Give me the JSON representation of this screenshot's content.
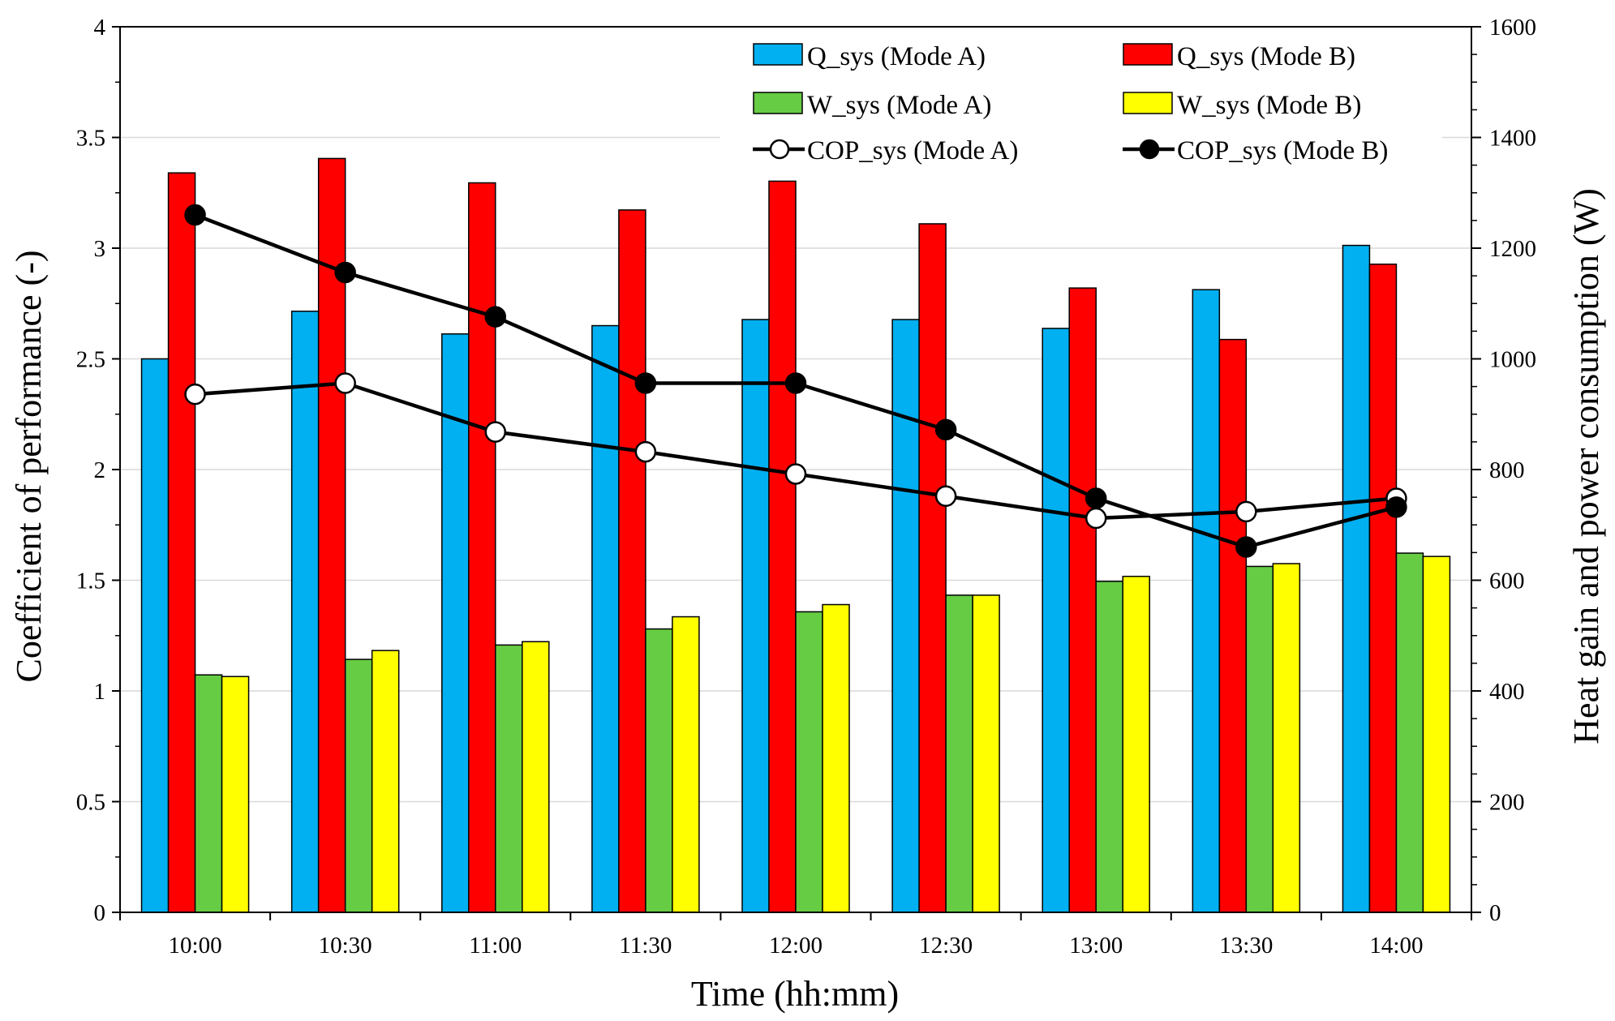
{
  "chart_data": {
    "type": "bar",
    "title": "",
    "xlabel": "Time (hh:mm)",
    "ylabel_left": "Coefficient of performance (-)",
    "ylabel_right": "Heat gain and power consumption (W)",
    "categories": [
      "10:00",
      "10:30",
      "11:00",
      "11:30",
      "12:00",
      "12:30",
      "13:00",
      "13:30",
      "14:00"
    ],
    "ylim_left": [
      0,
      4
    ],
    "ylim_right": [
      0,
      1600
    ],
    "yticks_left": [
      "0",
      "0.5",
      "1",
      "1.5",
      "2",
      "2.5",
      "3",
      "3.5",
      "4"
    ],
    "yticks_right": [
      "0",
      "200",
      "400",
      "600",
      "800",
      "1000",
      "1200",
      "1400",
      "1600"
    ],
    "grid": true,
    "legend_position": "top-right",
    "bar_series": [
      {
        "name": "Q_sys (Mode A)",
        "axis": "right",
        "color": "#00B0F0",
        "values": [
          1000,
          1086,
          1045,
          1060,
          1071,
          1071,
          1055,
          1125,
          1205
        ]
      },
      {
        "name": "Q_sys (Mode B)",
        "axis": "right",
        "color": "#FF0000",
        "values": [
          1336,
          1362,
          1318,
          1269,
          1321,
          1244,
          1128,
          1035,
          1171
        ]
      },
      {
        "name": "W_sys (Mode A)",
        "axis": "right",
        "color": "#66CC44",
        "values": [
          429,
          457,
          483,
          512,
          543,
          573,
          598,
          625,
          649
        ]
      },
      {
        "name": "W_sys (Mode B)",
        "axis": "right",
        "color": "#FFFF00",
        "values": [
          426,
          473,
          489,
          534,
          556,
          573,
          607,
          630,
          643
        ]
      }
    ],
    "line_series": [
      {
        "name": "COP_sys (Mode A)",
        "axis": "left",
        "marker": "open-circle",
        "color": "#000000",
        "values": [
          2.34,
          2.39,
          2.17,
          2.08,
          1.98,
          1.88,
          1.78,
          1.81,
          1.87
        ]
      },
      {
        "name": "COP_sys (Mode B)",
        "axis": "left",
        "marker": "filled-circle",
        "color": "#000000",
        "values": [
          3.15,
          2.89,
          2.69,
          2.39,
          2.39,
          2.18,
          1.87,
          1.65,
          1.83
        ]
      }
    ]
  }
}
